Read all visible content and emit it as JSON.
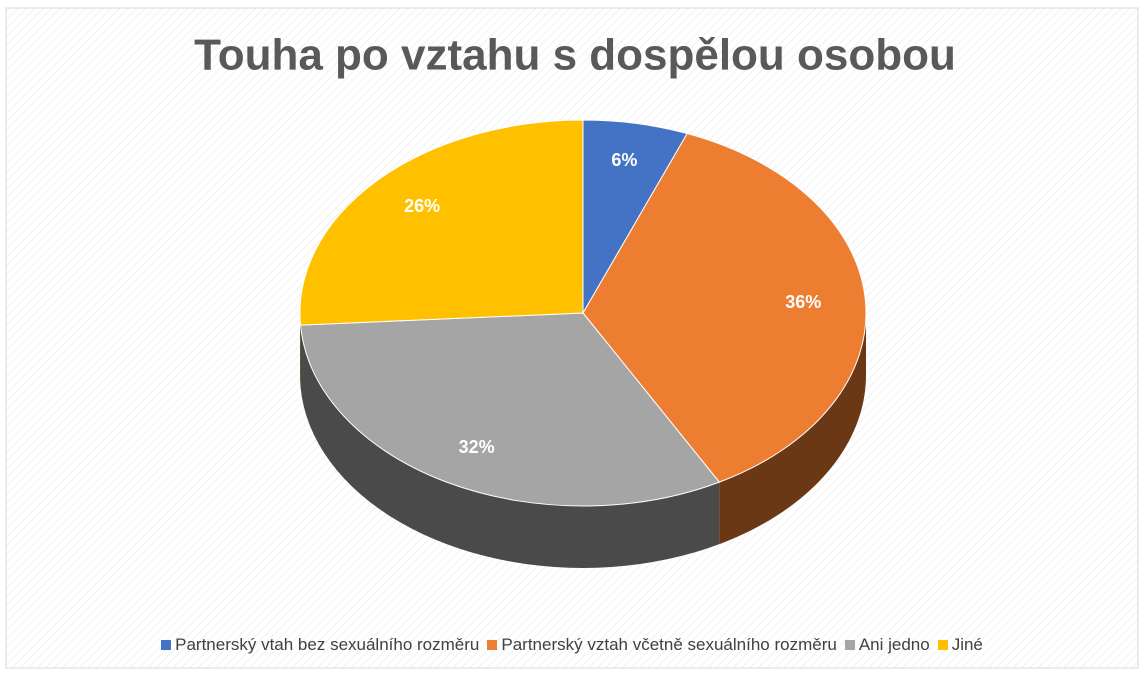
{
  "chart_data": {
    "type": "pie",
    "title": "Touha po vztahu s dospělou osobou",
    "categories": [
      "Partnerský vtah bez sexuálního rozměru",
      "Partnerský vztah včetně sexuálního rozměru",
      "Ani jedno",
      "Jiné"
    ],
    "values": [
      6,
      36,
      32,
      26
    ],
    "value_labels": [
      "6%",
      "36%",
      "32%",
      "26%"
    ],
    "colors": [
      "#4472c4",
      "#ed7d31",
      "#a5a5a5",
      "#ffc000"
    ],
    "legend": "bottom"
  }
}
